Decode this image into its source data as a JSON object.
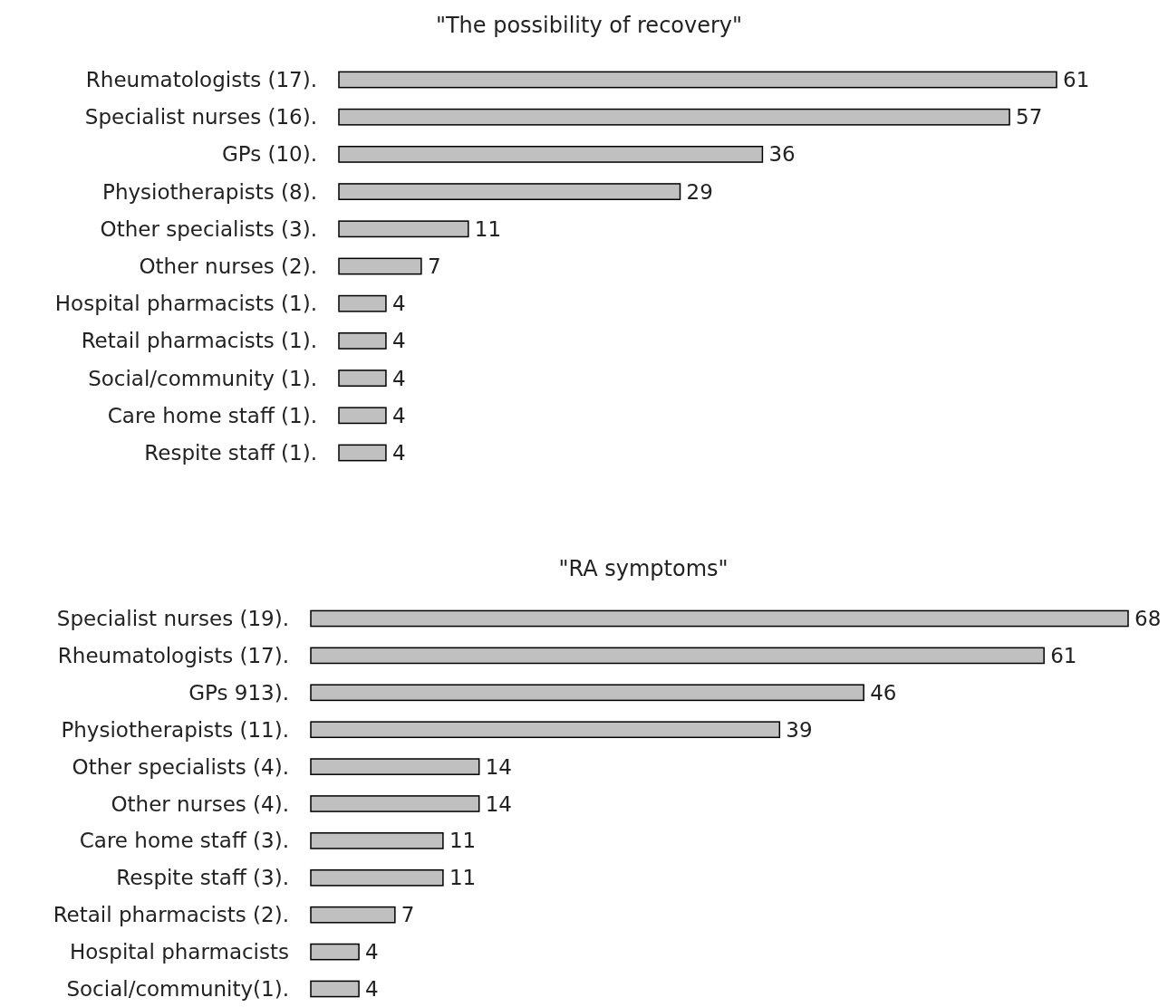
{
  "chart_data": [
    {
      "type": "bar",
      "orientation": "horizontal",
      "title": "\"The possibility of recovery\"",
      "categories": [
        "Rheumatologists (17).",
        "Specialist nurses (16).",
        "GPs (10).",
        "Physiotherapists (8).",
        "Other specialists (3).",
        "Other nurses (2).",
        "Hospital pharmacists (1).",
        "Retail pharmacists (1).",
        "Social/community (1).",
        "Care home staff (1).",
        "Respite staff (1)."
      ],
      "values": [
        61,
        57,
        36,
        29,
        11,
        7,
        4,
        4,
        4,
        4,
        4
      ],
      "color": "#c0c0c0",
      "data_labels": true
    },
    {
      "type": "bar",
      "orientation": "horizontal",
      "title": "\"RA symptoms\"",
      "categories": [
        "Specialist nurses (19).",
        "Rheumatologists (17).",
        "GPs 913).",
        "Physiotherapists (11).",
        "Other specialists (4).",
        "Other nurses (4).",
        "Care home staff (3).",
        "Respite staff (3).",
        "Retail pharmacists (2).",
        "Hospital pharmacists",
        "Social/community(1)."
      ],
      "values": [
        68,
        61,
        46,
        39,
        14,
        14,
        11,
        11,
        7,
        4,
        4
      ],
      "color": "#c0c0c0",
      "data_labels": true
    }
  ]
}
